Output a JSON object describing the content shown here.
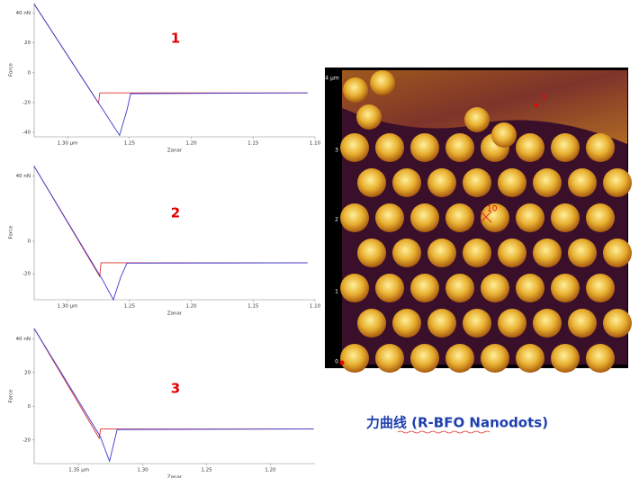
{
  "chart_data": [
    {
      "type": "line",
      "title": "1",
      "xlabel": "Zanar",
      "ylabel": "Force",
      "xlim": [
        1.327,
        1.1
      ],
      "ylim": [
        -43,
        47
      ],
      "xticks": [
        {
          "value": 1.3,
          "label": "1.30 µm"
        },
        1.25,
        {
          "value": 1.2,
          "label": "1.20"
        },
        1.15,
        {
          "value": 1.1,
          "label": "1.10"
        }
      ],
      "yticks": [
        {
          "value": 40,
          "label": "40 nN"
        },
        20,
        0,
        -20,
        -40
      ],
      "x": [
        1.327,
        1.275,
        1.274,
        1.258,
        1.252,
        1.249,
        1.106
      ],
      "series": [
        {
          "color": "#e03030",
          "values": [
            46,
            -20.4,
            -13.5,
            -13.5,
            -13.5,
            -13.5,
            -13.5
          ]
        },
        {
          "color": "#3a3ad0",
          "values": [
            46,
            -20.3,
            -21.5,
            -42,
            -25,
            -14,
            -13.5
          ]
        }
      ]
    },
    {
      "type": "line",
      "title": "2",
      "xlabel": "Zanar",
      "ylabel": "Force",
      "xlim": [
        1.327,
        1.1
      ],
      "ylim": [
        -36,
        47
      ],
      "xticks": [
        {
          "value": 1.3,
          "label": "1.30 µm"
        },
        1.25,
        {
          "value": 1.2,
          "label": "1.20"
        },
        1.15,
        {
          "value": 1.1,
          "label": "1.10"
        }
      ],
      "yticks": [
        {
          "value": 40,
          "label": "40 nN"
        },
        0,
        -20
      ],
      "x": [
        1.327,
        1.274,
        1.273,
        1.263,
        1.257,
        1.252,
        1.106
      ],
      "series": [
        {
          "color": "#e03030",
          "values": [
            46,
            -21.7,
            -13.3,
            -13.3,
            -13.3,
            -13.3,
            -13.3
          ]
        },
        {
          "color": "#3a3ad0",
          "values": [
            46,
            -21,
            -22,
            -36,
            -22,
            -13.5,
            -13.3
          ]
        }
      ]
    },
    {
      "type": "line",
      "title": "3",
      "xlabel": "Zanar",
      "ylabel": "Force",
      "xlim": [
        1.385,
        1.165
      ],
      "ylim": [
        -34,
        46
      ],
      "xticks": [
        {
          "value": 1.35,
          "label": "1.35 µm"
        },
        {
          "value": 1.3,
          "label": "1.30"
        },
        1.25,
        {
          "value": 1.2,
          "label": "1.20"
        }
      ],
      "yticks": [
        {
          "value": 40,
          "label": "40 nN"
        },
        20,
        0,
        -20
      ],
      "x": [
        1.385,
        1.334,
        1.333,
        1.326,
        1.322,
        1.32,
        1.166
      ],
      "series": [
        {
          "color": "#e03030",
          "values": [
            46,
            -19,
            -13.5,
            -13.5,
            -13.5,
            -13.5,
            -13.5
          ]
        },
        {
          "color": "#3a3ad0",
          "values": [
            46,
            -17,
            -18.5,
            -32.6,
            -20,
            -13.8,
            -13.5
          ]
        }
      ]
    }
  ],
  "afm_image": {
    "axis_labels": [
      "4 µm",
      "3",
      "2",
      "1",
      "0"
    ],
    "markers": [
      "3",
      "10"
    ]
  },
  "caption": "力曲线 (R-BFO Nanodots)"
}
